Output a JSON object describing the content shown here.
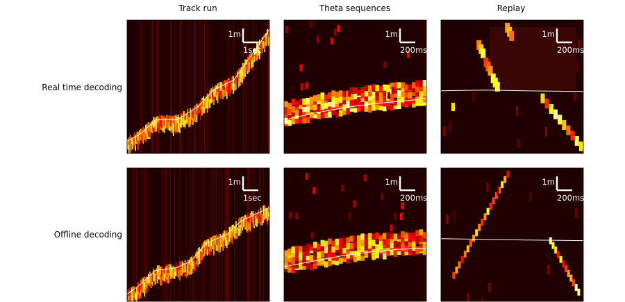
{
  "chart_data": {
    "type": "heatmap",
    "columns": [
      "Track run",
      "Theta sequences",
      "Replay"
    ],
    "rows": [
      "Real time decoding",
      "Offline decoding"
    ],
    "colormap": "hot",
    "background_color": "#200000",
    "true_position_line_color": "#ffffff",
    "panels": [
      {
        "row": 0,
        "col": 0,
        "scalebar": {
          "y_label": "1m",
          "x_label": "1sec"
        },
        "true_position": [
          [
            0,
            0.04
          ],
          [
            0.1,
            0.1
          ],
          [
            0.2,
            0.2
          ],
          [
            0.35,
            0.2
          ],
          [
            0.5,
            0.3
          ],
          [
            0.6,
            0.42
          ],
          [
            0.75,
            0.5
          ],
          [
            0.85,
            0.65
          ],
          [
            1,
            0.88
          ]
        ]
      },
      {
        "row": 0,
        "col": 1,
        "scalebar": {
          "y_label": "1m",
          "x_label": "200msec"
        },
        "true_position": [
          [
            0,
            0.25
          ],
          [
            0.2,
            0.3
          ],
          [
            0.4,
            0.34
          ],
          [
            0.6,
            0.37
          ],
          [
            0.8,
            0.39
          ],
          [
            1,
            0.41
          ]
        ]
      },
      {
        "row": 0,
        "col": 2,
        "scalebar": {
          "y_label": "1m",
          "x_label": "200msec"
        },
        "true_position": [
          [
            0,
            0.47
          ],
          [
            0.3,
            0.475
          ],
          [
            0.6,
            0.47
          ],
          [
            1,
            0.465
          ]
        ]
      },
      {
        "row": 1,
        "col": 0,
        "scalebar": {
          "y_label": "1m",
          "x_label": "1sec"
        },
        "true_position": [
          [
            0,
            0.0
          ],
          [
            0.1,
            0.08
          ],
          [
            0.2,
            0.18
          ],
          [
            0.35,
            0.2
          ],
          [
            0.45,
            0.25
          ],
          [
            0.55,
            0.38
          ],
          [
            0.7,
            0.45
          ],
          [
            0.8,
            0.55
          ],
          [
            1,
            0.65
          ]
        ]
      },
      {
        "row": 1,
        "col": 1,
        "scalebar": {
          "y_label": "1m",
          "x_label": "200msec"
        },
        "true_position": [
          [
            0,
            0.26
          ],
          [
            0.2,
            0.3
          ],
          [
            0.4,
            0.34
          ],
          [
            0.6,
            0.37
          ],
          [
            0.8,
            0.39
          ],
          [
            1,
            0.4
          ]
        ]
      },
      {
        "row": 1,
        "col": 2,
        "scalebar": {
          "y_label": "1m",
          "x_label": "200msec"
        },
        "true_position": [
          [
            0,
            0.47
          ],
          [
            0.3,
            0.465
          ],
          [
            0.6,
            0.46
          ],
          [
            1,
            0.455
          ]
        ]
      }
    ]
  }
}
